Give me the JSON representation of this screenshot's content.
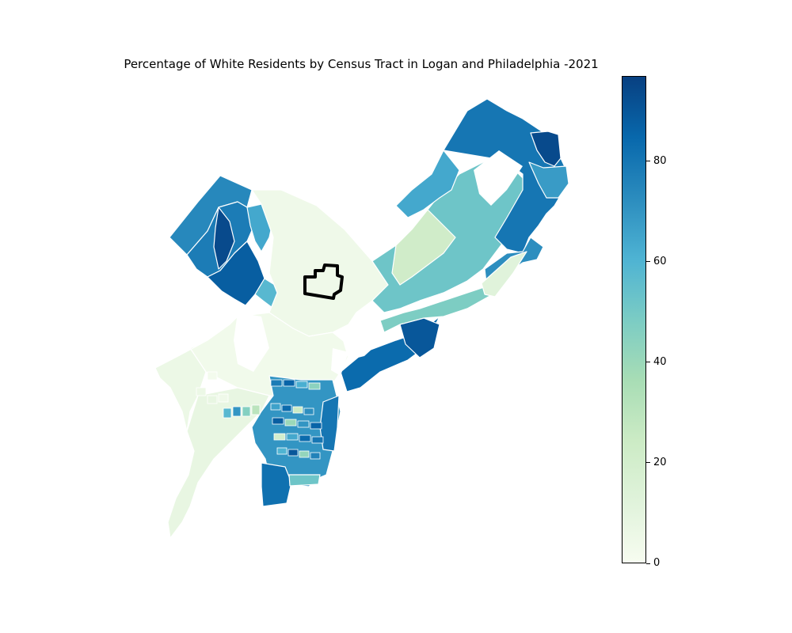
{
  "title": "Percentage of White Residents by Census Tract in Logan and Philadelphia -2021",
  "colorbar": {
    "colormap": "GnBu",
    "min": 0,
    "max": 97,
    "ticks": [
      {
        "value": 0,
        "label": "0"
      },
      {
        "value": 20,
        "label": "20"
      },
      {
        "value": 40,
        "label": "40"
      },
      {
        "value": 60,
        "label": "60"
      },
      {
        "value": 80,
        "label": "80"
      }
    ],
    "colors": [
      "#f7fcf0",
      "#e0f3db",
      "#ccebc5",
      "#a8ddb5",
      "#7bccc4",
      "#4eb3d3",
      "#2b8cbe",
      "#0868ac",
      "#084081"
    ]
  },
  "highlight": {
    "name": "Logan",
    "outline_color": "#000000"
  }
}
